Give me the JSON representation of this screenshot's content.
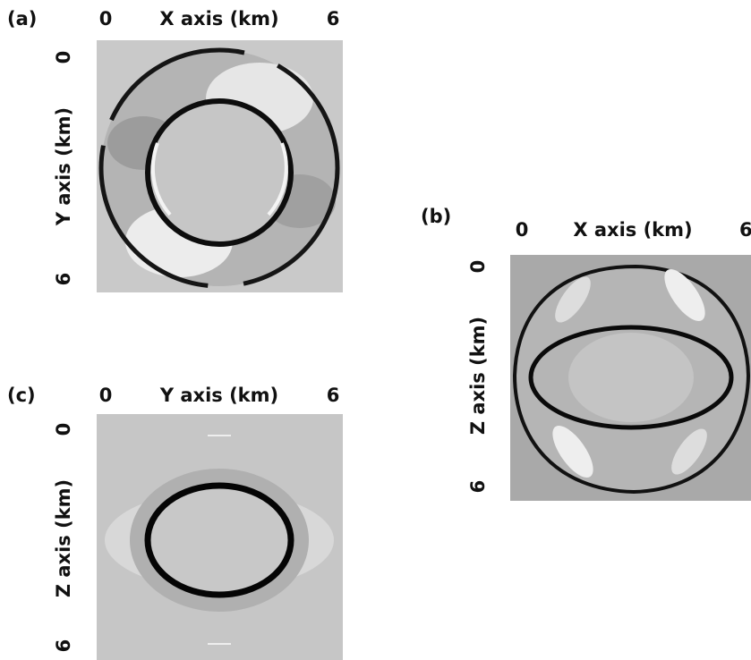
{
  "panels": [
    {
      "label": "(a)",
      "x_axis": {
        "title": "X axis (km)",
        "ticks": [
          "0",
          "6"
        ]
      },
      "y_axis": {
        "title": "Y axis (km)",
        "ticks": [
          "0",
          "6"
        ]
      }
    },
    {
      "label": "(b)",
      "x_axis": {
        "title": "X axis (km)",
        "ticks": [
          "0",
          "6"
        ]
      },
      "y_axis": {
        "title": "Z axis (km)",
        "ticks": [
          "0",
          "6"
        ]
      }
    },
    {
      "label": "(c)",
      "x_axis": {
        "title": "Y axis (km)",
        "ticks": [
          "0",
          "6"
        ]
      },
      "y_axis": {
        "title": "Z axis (km)",
        "ticks": [
          "0",
          "6"
        ]
      }
    }
  ]
}
